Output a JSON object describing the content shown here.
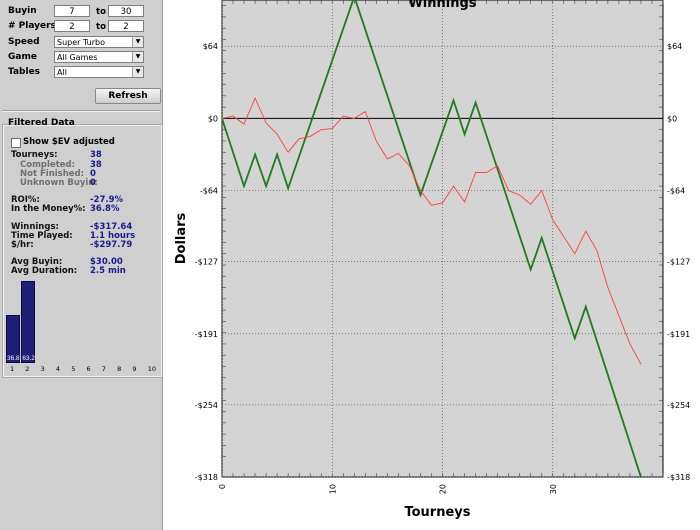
{
  "filters": {
    "buyin": {
      "label": "Buyin",
      "min": "7",
      "to": "to",
      "max": "30"
    },
    "players": {
      "label": "# Players",
      "min": "2",
      "to": "to",
      "max": "2"
    },
    "speed": {
      "label": "Speed",
      "value": "Super Turbo"
    },
    "game": {
      "label": "Game",
      "value": "All Games"
    },
    "tables": {
      "label": "Tables",
      "value": "All"
    },
    "refresh_label": "Refresh"
  },
  "filtered": {
    "title": "Filtered Data",
    "ev_label": "Show $EV adjusted",
    "ev_checked": false,
    "stats": [
      {
        "label": "Tourneys:",
        "value": "38",
        "sub": false
      },
      {
        "label": "Completed:",
        "value": "38",
        "sub": true
      },
      {
        "label": "Not Finished:",
        "value": "0",
        "sub": true
      },
      {
        "label": "Unknown Buyin:",
        "value": "0",
        "sub": true
      },
      {
        "label": "ROI%:",
        "value": "-27.9%",
        "sub": false
      },
      {
        "label": "In the Money%:",
        "value": "36.8%",
        "sub": false
      },
      {
        "label": "Winnings:",
        "value": "-$317.64",
        "sub": false
      },
      {
        "label": "Time Played:",
        "value": "1.1  hours",
        "sub": false
      },
      {
        "label": "$/hr:",
        "value": "-$297.79",
        "sub": false
      },
      {
        "label": "Avg Buyin:",
        "value": "$30.00",
        "sub": false
      },
      {
        "label": "Avg Duration:",
        "value": "2.5  min",
        "sub": false
      }
    ],
    "histogram": {
      "categories": [
        "1",
        "2",
        "3",
        "4",
        "5",
        "6",
        "7",
        "8",
        "9",
        "10"
      ],
      "values": [
        36.8,
        63.2,
        0,
        0,
        0,
        0,
        0,
        0,
        0,
        0
      ],
      "labels": [
        "36.8",
        "63.2"
      ]
    }
  },
  "chart_data": {
    "type": "line",
    "title": "Winnings",
    "xlabel": "Tourneys",
    "ylabel": "Dollars",
    "xlim": [
      0,
      40
    ],
    "ylim": [
      -318,
      105
    ],
    "xticks": [
      0,
      10,
      20,
      30
    ],
    "xtick_labels": [
      "0",
      "10",
      "20",
      "30"
    ],
    "yticks": [
      64,
      0,
      -64,
      -127,
      -191,
      -254,
      -318
    ],
    "ytick_labels": [
      "$64",
      "$0",
      "-$64",
      "-$127",
      "-$191",
      "-$254",
      "-$318"
    ],
    "grid": true,
    "series": [
      {
        "color": "#1f7a1f",
        "x": [
          0,
          2,
          3,
          4,
          5,
          6,
          12,
          18,
          21,
          22,
          23,
          28,
          29,
          32,
          33,
          38
        ],
        "y": [
          0,
          -60,
          -32,
          -60,
          -32,
          -62,
          108,
          -68,
          16,
          -14,
          14,
          -134,
          -106,
          -195,
          -167,
          -318
        ]
      },
      {
        "color": "#ff4040",
        "x": [
          0,
          1,
          2,
          3,
          4,
          5,
          6,
          7,
          8,
          9,
          10,
          11,
          12,
          13,
          14,
          15,
          16,
          17,
          18,
          19,
          20,
          21,
          22,
          23,
          24,
          25,
          26,
          27,
          28,
          29,
          30,
          31,
          32,
          33,
          34,
          35,
          36,
          37,
          38
        ],
        "y": [
          0,
          2,
          -5,
          18,
          -4,
          -14,
          -30,
          -18,
          -16,
          -10,
          -9,
          2,
          0,
          6,
          -20,
          -36,
          -31,
          -42,
          -64,
          -77,
          -75,
          -60,
          -74,
          -48,
          -48,
          -42,
          -64,
          -68,
          -76,
          -64,
          -90,
          -105,
          -120,
          -100,
          -117,
          -150,
          -175,
          -200,
          -218
        ]
      }
    ],
    "reference_lines": [
      {
        "axis": "y",
        "value": 0,
        "color": "#000000"
      }
    ]
  }
}
